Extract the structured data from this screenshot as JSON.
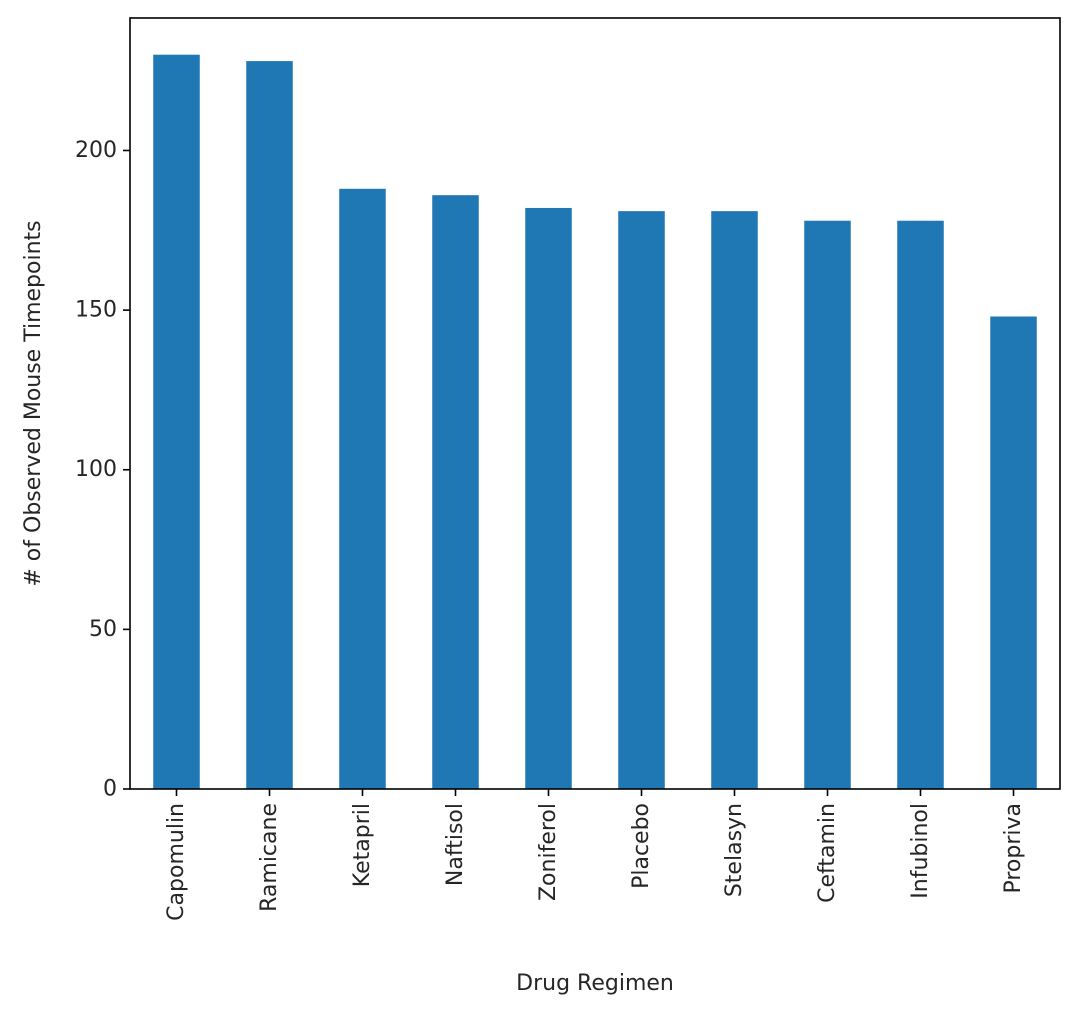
{
  "chart_data": {
    "type": "bar",
    "title": "",
    "xlabel": "Drug Regimen",
    "ylabel": "# of Observed Mouse Timepoints",
    "categories": [
      "Capomulin",
      "Ramicane",
      "Ketapril",
      "Naftisol",
      "Zoniferol",
      "Placebo",
      "Stelasyn",
      "Ceftamin",
      "Infubinol",
      "Propriva"
    ],
    "values": [
      230,
      228,
      188,
      186,
      182,
      181,
      181,
      178,
      178,
      148
    ],
    "ylim": [
      0,
      241.5
    ],
    "yticks": [
      0,
      50,
      100,
      150,
      200
    ],
    "bar_color": "#1f77b4",
    "grid": false,
    "legend": "none"
  }
}
